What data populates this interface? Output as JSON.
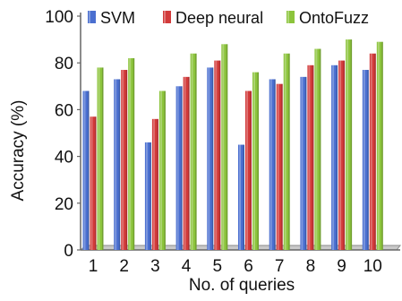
{
  "chart_data": {
    "type": "bar",
    "title": "",
    "xlabel": "No. of queries",
    "ylabel": "Accuracy (%)",
    "ylim": [
      0,
      100
    ],
    "yticks": [
      0,
      20,
      40,
      60,
      80,
      100
    ],
    "categories": [
      "1",
      "2",
      "3",
      "4",
      "5",
      "6",
      "7",
      "8",
      "9",
      "10"
    ],
    "grid": false,
    "legend_position": "top",
    "series": [
      {
        "name": "SVM",
        "color": "#4a6fd0",
        "values": [
          68,
          73,
          46,
          70,
          78,
          45,
          73,
          74,
          79,
          77
        ]
      },
      {
        "name": "Deep neural",
        "color": "#d23a3a",
        "values": [
          57,
          77,
          56,
          74,
          81,
          68,
          71,
          79,
          81,
          84
        ]
      },
      {
        "name": "OntoFuzz",
        "color": "#8cc43c",
        "values": [
          78,
          82,
          68,
          84,
          88,
          76,
          84,
          86,
          90,
          89
        ]
      }
    ]
  }
}
